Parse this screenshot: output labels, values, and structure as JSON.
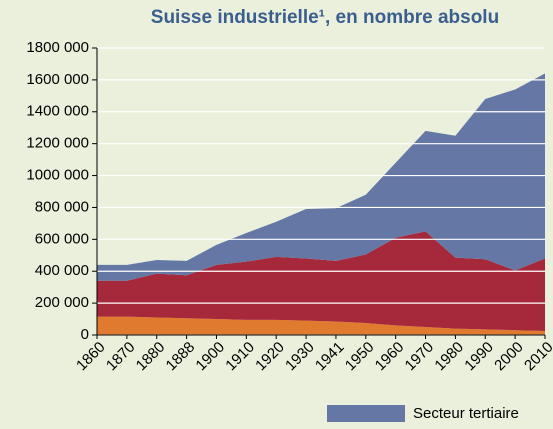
{
  "chart_data": {
    "type": "stacked_area",
    "title": "Suisse industrielle¹, en nombre absolu",
    "categories": [
      "1860",
      "1870",
      "1880",
      "1888",
      "1900",
      "1910",
      "1920",
      "1930",
      "1941",
      "1950",
      "1960",
      "1970",
      "1980",
      "1990",
      "2000",
      "2010"
    ],
    "series": [
      {
        "color": "#e07a2e",
        "values": [
          115000,
          115000,
          110000,
          105000,
          100000,
          95000,
          95000,
          90000,
          85000,
          75000,
          60000,
          50000,
          40000,
          35000,
          30000,
          25000
        ]
      },
      {
        "color": "#a6283b",
        "values": [
          225000,
          225000,
          275000,
          270000,
          340000,
          365000,
          395000,
          390000,
          380000,
          430000,
          550000,
          600000,
          445000,
          440000,
          375000,
          455000
        ]
      },
      {
        "name": "Secteur tertiaire",
        "color": "#6577a5",
        "values": [
          100000,
          100000,
          85000,
          90000,
          125000,
          180000,
          220000,
          310000,
          330000,
          375000,
          470000,
          630000,
          765000,
          1005000,
          1135000,
          1160000
        ]
      }
    ],
    "ylim": [
      0,
      1800000
    ],
    "yticks": [
      0,
      {
        "value": 200000,
        "label": "200 000"
      },
      {
        "value": 400000,
        "label": "400 000"
      },
      {
        "value": 600000,
        "label": "600 000"
      },
      {
        "value": 800000,
        "label": "800 000"
      },
      {
        "value": 1000000,
        "label": "1000 000"
      },
      {
        "value": 1200000,
        "label": "1200 000"
      },
      {
        "value": 1400000,
        "label": "1400 000"
      },
      {
        "value": 1600000,
        "label": "1600 000"
      },
      {
        "value": 1800000,
        "label": "1800 000"
      }
    ],
    "grid": true
  }
}
